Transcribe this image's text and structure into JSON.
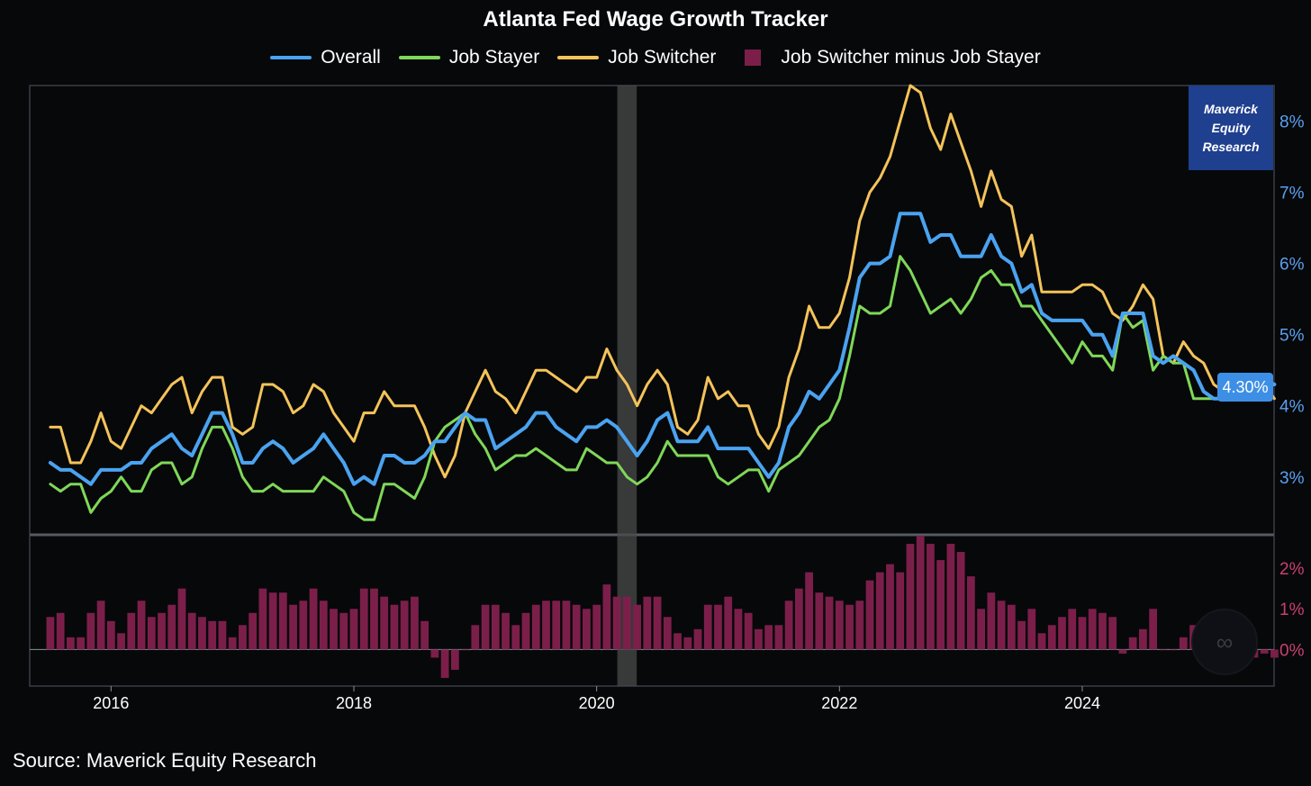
{
  "chart_data": {
    "type": "line",
    "title": "Atlanta Fed Wage Growth Tracker",
    "source": "Source: Maverick Equity Research",
    "watermark": [
      "Maverick",
      "Equity",
      "Research"
    ],
    "last_value_label": "4.30%",
    "x_range": [
      2015.33,
      2025.58
    ],
    "x_ticks": [
      2016,
      2018,
      2020,
      2022,
      2024
    ],
    "x_tick_labels": [
      "2016",
      "2018",
      "2020",
      "2022",
      "2024"
    ],
    "y_main": {
      "range": [
        2.2,
        8.5
      ],
      "ticks": [
        3,
        4,
        5,
        6,
        7,
        8
      ],
      "tick_labels": [
        "3%",
        "4%",
        "5%",
        "6%",
        "7%",
        "8%"
      ]
    },
    "y_sub": {
      "range": [
        -0.9,
        2.8
      ],
      "ticks": [
        0,
        1,
        2
      ],
      "tick_labels": [
        "0%",
        "1%",
        "2%"
      ]
    },
    "shaded_period": [
      2020.17,
      2020.33
    ],
    "start": 2015.5,
    "step": 0.0833333,
    "series": [
      {
        "name": "Overall",
        "color": "#4aa3f0",
        "width": 4,
        "values": [
          3.2,
          3.1,
          3.1,
          3.0,
          2.9,
          3.1,
          3.1,
          3.1,
          3.2,
          3.2,
          3.4,
          3.5,
          3.6,
          3.4,
          3.3,
          3.6,
          3.9,
          3.9,
          3.6,
          3.2,
          3.2,
          3.4,
          3.5,
          3.4,
          3.2,
          3.3,
          3.4,
          3.6,
          3.4,
          3.2,
          2.9,
          3.0,
          2.9,
          3.3,
          3.3,
          3.2,
          3.2,
          3.3,
          3.5,
          3.5,
          3.7,
          3.9,
          3.8,
          3.8,
          3.4,
          3.5,
          3.6,
          3.7,
          3.9,
          3.9,
          3.7,
          3.6,
          3.5,
          3.7,
          3.7,
          3.8,
          3.7,
          3.5,
          3.3,
          3.5,
          3.8,
          3.9,
          3.5,
          3.5,
          3.5,
          3.7,
          3.4,
          3.4,
          3.4,
          3.4,
          3.2,
          3.0,
          3.2,
          3.7,
          3.9,
          4.2,
          4.1,
          4.3,
          4.5,
          5.1,
          5.8,
          6.0,
          6.0,
          6.1,
          6.7,
          6.7,
          6.7,
          6.3,
          6.4,
          6.4,
          6.1,
          6.1,
          6.1,
          6.4,
          6.1,
          6.0,
          5.6,
          5.7,
          5.3,
          5.2,
          5.2,
          5.2,
          5.2,
          5.0,
          5.0,
          4.7,
          5.3,
          5.3,
          5.3,
          4.7,
          4.6,
          4.7,
          4.6,
          4.5,
          4.2,
          4.1,
          4.1,
          4.3,
          4.3,
          4.3,
          4.3,
          4.3
        ]
      },
      {
        "name": "Job Stayer",
        "color": "#7fd858",
        "width": 3,
        "values": [
          2.9,
          2.8,
          2.9,
          2.9,
          2.5,
          2.7,
          2.8,
          3.0,
          2.8,
          2.8,
          3.1,
          3.2,
          3.2,
          2.9,
          3.0,
          3.4,
          3.7,
          3.7,
          3.4,
          3.0,
          2.8,
          2.8,
          2.9,
          2.8,
          2.8,
          2.8,
          2.8,
          3.0,
          2.9,
          2.8,
          2.5,
          2.4,
          2.4,
          2.9,
          2.9,
          2.8,
          2.7,
          3.0,
          3.5,
          3.7,
          3.8,
          3.9,
          3.6,
          3.4,
          3.1,
          3.2,
          3.3,
          3.3,
          3.4,
          3.3,
          3.2,
          3.1,
          3.1,
          3.4,
          3.3,
          3.2,
          3.2,
          3.0,
          2.9,
          3.0,
          3.2,
          3.5,
          3.3,
          3.3,
          3.3,
          3.3,
          3.0,
          2.9,
          3.0,
          3.1,
          3.1,
          2.8,
          3.1,
          3.2,
          3.3,
          3.5,
          3.7,
          3.8,
          4.1,
          4.7,
          5.4,
          5.3,
          5.3,
          5.4,
          6.1,
          5.9,
          5.6,
          5.3,
          5.4,
          5.5,
          5.3,
          5.5,
          5.8,
          5.9,
          5.7,
          5.7,
          5.4,
          5.4,
          5.2,
          5.0,
          4.8,
          4.6,
          4.9,
          4.7,
          4.7,
          4.5,
          5.3,
          5.1,
          5.2,
          4.5,
          4.7,
          4.6,
          4.6,
          4.1,
          4.1,
          4.1,
          4.1,
          4.4,
          4.4,
          4.4,
          4.4,
          4.3
        ]
      },
      {
        "name": "Job Switcher",
        "color": "#f4c35a",
        "width": 3,
        "values": [
          3.7,
          3.7,
          3.2,
          3.2,
          3.5,
          3.9,
          3.5,
          3.4,
          3.7,
          4.0,
          3.9,
          4.1,
          4.3,
          4.4,
          3.9,
          4.2,
          4.4,
          4.4,
          3.7,
          3.6,
          3.7,
          4.3,
          4.3,
          4.2,
          3.9,
          4.0,
          4.3,
          4.2,
          3.9,
          3.7,
          3.5,
          3.9,
          3.9,
          4.2,
          4.0,
          4.0,
          4.0,
          3.7,
          3.3,
          3.0,
          3.3,
          3.9,
          4.2,
          4.5,
          4.2,
          4.1,
          3.9,
          4.2,
          4.5,
          4.5,
          4.4,
          4.3,
          4.2,
          4.4,
          4.4,
          4.8,
          4.5,
          4.3,
          4.0,
          4.3,
          4.5,
          4.3,
          3.7,
          3.6,
          3.8,
          4.4,
          4.1,
          4.2,
          4.0,
          4.0,
          3.6,
          3.4,
          3.7,
          4.4,
          4.8,
          5.4,
          5.1,
          5.1,
          5.3,
          5.8,
          6.6,
          7.0,
          7.2,
          7.5,
          8.0,
          8.5,
          8.4,
          7.9,
          7.6,
          8.1,
          7.7,
          7.3,
          6.8,
          7.3,
          6.9,
          6.8,
          6.1,
          6.4,
          5.6,
          5.6,
          5.6,
          5.6,
          5.7,
          5.7,
          5.6,
          5.3,
          5.2,
          5.4,
          5.7,
          5.5,
          4.7,
          4.6,
          4.9,
          4.7,
          4.6,
          4.3,
          4.2,
          4.2,
          4.2,
          4.2,
          4.3,
          4.1
        ]
      },
      {
        "name": "Job Switcher minus Job Stayer",
        "color": "#7b1f4a",
        "type": "bar",
        "values": [
          0.8,
          0.9,
          0.3,
          0.3,
          0.9,
          1.2,
          0.7,
          0.4,
          0.9,
          1.2,
          0.8,
          0.9,
          1.1,
          1.5,
          0.9,
          0.8,
          0.7,
          0.7,
          0.3,
          0.6,
          0.9,
          1.5,
          1.4,
          1.4,
          1.1,
          1.2,
          1.5,
          1.2,
          1.0,
          0.9,
          1.0,
          1.5,
          1.5,
          1.3,
          1.1,
          1.2,
          1.3,
          0.7,
          -0.2,
          -0.7,
          -0.5,
          0.0,
          0.6,
          1.1,
          1.1,
          0.9,
          0.6,
          0.9,
          1.1,
          1.2,
          1.2,
          1.2,
          1.1,
          1.0,
          1.1,
          1.6,
          1.3,
          1.3,
          1.1,
          1.3,
          1.3,
          0.8,
          0.4,
          0.3,
          0.5,
          1.1,
          1.1,
          1.3,
          1.0,
          0.9,
          0.5,
          0.6,
          0.6,
          1.2,
          1.5,
          1.9,
          1.4,
          1.3,
          1.2,
          1.1,
          1.2,
          1.7,
          1.9,
          2.1,
          1.9,
          2.6,
          2.8,
          2.6,
          2.2,
          2.6,
          2.4,
          1.8,
          1.0,
          1.4,
          1.2,
          1.1,
          0.7,
          1.0,
          0.4,
          0.6,
          0.8,
          1.0,
          0.8,
          1.0,
          0.9,
          0.8,
          -0.1,
          0.3,
          0.5,
          1.0,
          0.0,
          0.0,
          0.3,
          0.6,
          0.5,
          0.2,
          0.1,
          -0.2,
          -0.2,
          -0.2,
          -0.1,
          -0.2
        ]
      }
    ]
  }
}
